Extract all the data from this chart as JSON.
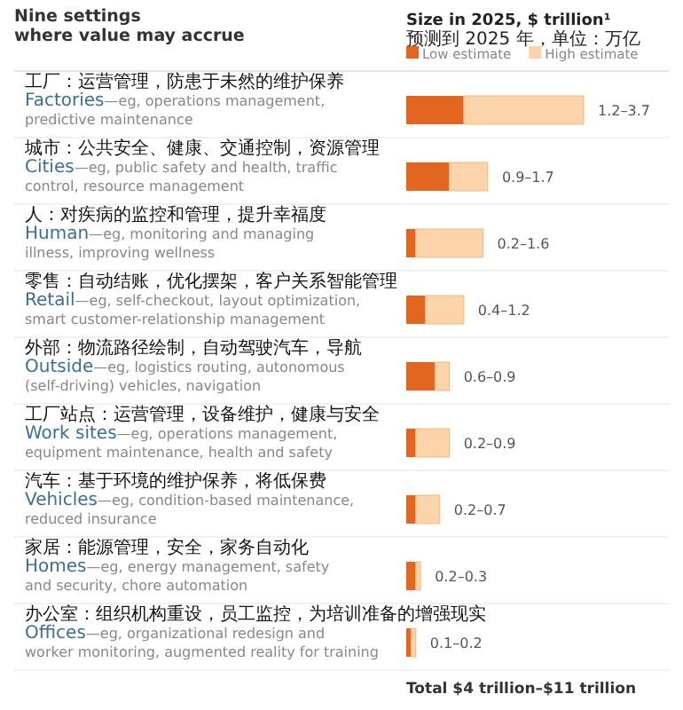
{
  "chart_data": {
    "type": "bar",
    "orientation": "horizontal",
    "stacked": true,
    "title": "Nine settings\nwhere value may accrue",
    "subtitle": "Size in 2025, $ trillion¹\n预测到 2025 年，单位：万亿",
    "categories": [
      "工厂：运营管理，防患于未然的维护保养\nFactories—eg, operations management,\npredictive maintenance",
      "城市：公共安全、健康、交通控制，资源管理\nCities—eg, public safety and health, traffic\ncontrol, resource management",
      "人：对疾病的监控和管理，提升幸福度\nHuman—eg, monitoring and managing\nillness, improving wellness",
      "零售：自动结账，优化摆架，客户关系智能管理\nRetail—eg, self-checkout, layout optimization,\nsmart customer-relationship management",
      "外部：物流路径绘制，自动驾驶汽车，导航\nOutside—eg, logistics routing, autonomous\n(self-driving) vehicles, navigation",
      "工厂站点：运营管理，设备维护，健康与安全\nWork sites—eg, operations management,\nequipment maintenance, health and safety",
      "汽车：基于环境的维护保养，将低保费\nVehicles—eg, condition-based maintenance,\nreduced insurance",
      "家居：能源管理，安全，家务自动化\nHomes—eg, energy management, safety\nand security, chore automation",
      "办公室：组织机构重设，员工监控，为培训准备的增强现实\nOffices—eg, organizational redesign and\nworker monitoring, augmented reality for training"
    ],
    "series": [
      {
        "name": "Low estimate",
        "color": "#e2661f",
        "values": [
          1.2,
          0.9,
          0.2,
          0.4,
          0.6,
          0.2,
          0.2,
          0.2,
          0.1
        ]
      },
      {
        "name": "High estimate",
        "color": "#fbd5a9",
        "values": [
          2.5,
          0.8,
          1.4,
          0.8,
          0.3,
          0.7,
          0.5,
          0.1,
          0.1
        ],
        "value_labels": [
          "1.2–3.7",
          "0.9–1.7",
          "0.2–1.6",
          "0.4–1.2",
          "0.6–0.9",
          "0.2–0.9",
          "0.2–0.7",
          "0.2–0.3",
          "0.1–0.2"
        ]
      }
    ],
    "legend": "top right",
    "annotations": [
      "Total  $4 trillion–$11 trillion"
    ]
  }
}
